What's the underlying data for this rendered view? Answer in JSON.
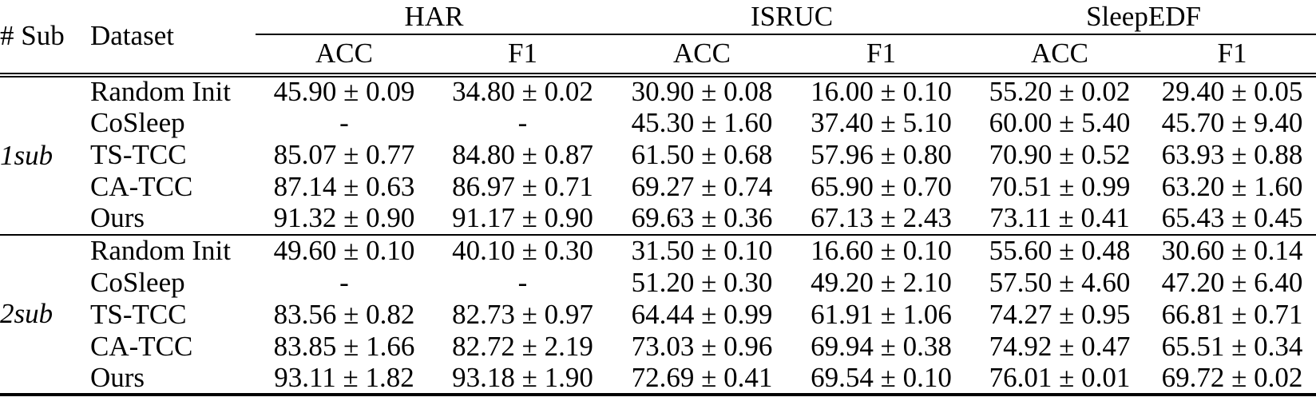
{
  "table": {
    "header": {
      "sub_col": "# Sub",
      "dataset_col": "Dataset",
      "groups": [
        {
          "label": "HAR"
        },
        {
          "label": "ISRUC"
        },
        {
          "label": "SleepEDF"
        }
      ],
      "subheaders": [
        "ACC",
        "F1",
        "ACC",
        "F1",
        "ACC",
        "F1"
      ]
    },
    "body": [
      {
        "group_label": "1sub",
        "rows": [
          {
            "method": "Random Init",
            "method_bold": false,
            "cells": [
              {
                "t": "45.90 ± 0.09",
                "b": false
              },
              {
                "t": "34.80 ± 0.02",
                "b": false
              },
              {
                "t": "30.90 ± 0.08",
                "b": false
              },
              {
                "t": "16.00 ± 0.10",
                "b": false
              },
              {
                "t": "55.20 ± 0.02",
                "b": false
              },
              {
                "t": "29.40 ± 0.05",
                "b": false
              }
            ]
          },
          {
            "method": "CoSleep",
            "method_bold": false,
            "cells": [
              {
                "t": "-",
                "b": false
              },
              {
                "t": "-",
                "b": false
              },
              {
                "t": "45.30 ± 1.60",
                "b": false
              },
              {
                "t": "37.40 ± 5.10",
                "b": false
              },
              {
                "t": "60.00 ± 5.40",
                "b": false
              },
              {
                "t": "45.70 ± 9.40",
                "b": false
              }
            ]
          },
          {
            "method": "TS-TCC",
            "method_bold": false,
            "cells": [
              {
                "t": "85.07 ± 0.77",
                "b": false
              },
              {
                "t": "84.80 ± 0.87",
                "b": false
              },
              {
                "t": "61.50 ± 0.68",
                "b": false
              },
              {
                "t": "57.96 ± 0.80",
                "b": false
              },
              {
                "t": "70.90 ± 0.52",
                "b": false
              },
              {
                "t": "63.93 ± 0.88",
                "b": false
              }
            ]
          },
          {
            "method": "CA-TCC",
            "method_bold": false,
            "cells": [
              {
                "t": "87.14 ± 0.63",
                "b": false
              },
              {
                "t": "86.97 ± 0.71",
                "b": false
              },
              {
                "t": "69.27 ± 0.74",
                "b": false
              },
              {
                "t": "65.90 ± 0.70",
                "b": false
              },
              {
                "t": "70.51 ± 0.99",
                "b": false
              },
              {
                "t": "63.20 ± 1.60",
                "b": false
              }
            ]
          },
          {
            "method": "Ours",
            "method_bold": true,
            "cells": [
              {
                "t": "91.32 ± 0.90",
                "b": true
              },
              {
                "t": "91.17 ± 0.90",
                "b": true
              },
              {
                "t": "69.63 ± 0.36",
                "b": true
              },
              {
                "t": "67.13 ± 2.43",
                "b": true
              },
              {
                "t": "73.11 ± 0.41",
                "b": true
              },
              {
                "t": "65.43 ± 0.45",
                "b": true
              }
            ]
          }
        ]
      },
      {
        "group_label": "2sub",
        "rows": [
          {
            "method": "Random Init",
            "method_bold": false,
            "cells": [
              {
                "t": "49.60 ± 0.10",
                "b": false
              },
              {
                "t": "40.10 ± 0.30",
                "b": false
              },
              {
                "t": "31.50 ± 0.10",
                "b": false
              },
              {
                "t": "16.60 ± 0.10",
                "b": false
              },
              {
                "t": "55.60 ± 0.48",
                "b": false
              },
              {
                "t": "30.60 ± 0.14",
                "b": false
              }
            ]
          },
          {
            "method": "CoSleep",
            "method_bold": false,
            "cells": [
              {
                "t": "-",
                "b": false
              },
              {
                "t": "-",
                "b": false
              },
              {
                "t": "51.20 ± 0.30",
                "b": false
              },
              {
                "t": "49.20 ± 2.10",
                "b": false
              },
              {
                "t": "57.50 ± 4.60",
                "b": false
              },
              {
                "t": "47.20 ± 6.40",
                "b": false
              }
            ]
          },
          {
            "method": "TS-TCC",
            "method_bold": false,
            "cells": [
              {
                "t": "83.56 ± 0.82",
                "b": false
              },
              {
                "t": "82.73 ± 0.97",
                "b": false
              },
              {
                "t": "64.44 ± 0.99",
                "b": false
              },
              {
                "t": "61.91 ± 1.06",
                "b": false
              },
              {
                "t": "74.27 ± 0.95",
                "b": false
              },
              {
                "t": "66.81 ± 0.71",
                "b": false
              }
            ]
          },
          {
            "method": "CA-TCC",
            "method_bold": false,
            "cells": [
              {
                "t": "83.85 ± 1.66",
                "b": false
              },
              {
                "t": "82.72 ± 2.19",
                "b": false
              },
              {
                "t": "73.03 ± 0.96",
                "b": true
              },
              {
                "t": "69.94 ± 0.38",
                "b": true
              },
              {
                "t": "74.92 ± 0.47",
                "b": false
              },
              {
                "t": "65.51 ± 0.34",
                "b": false
              }
            ]
          },
          {
            "method": "Ours",
            "method_bold": true,
            "cells": [
              {
                "t": "93.11 ± 1.82",
                "b": true
              },
              {
                "t": "93.18 ± 1.90",
                "b": true
              },
              {
                "t": "72.69 ± 0.41",
                "b": false
              },
              {
                "t": "69.54 ± 0.10",
                "b": false
              },
              {
                "t": "76.01 ± 0.01",
                "b": true
              },
              {
                "t": "69.72 ± 0.02",
                "b": true
              }
            ]
          }
        ]
      }
    ]
  }
}
